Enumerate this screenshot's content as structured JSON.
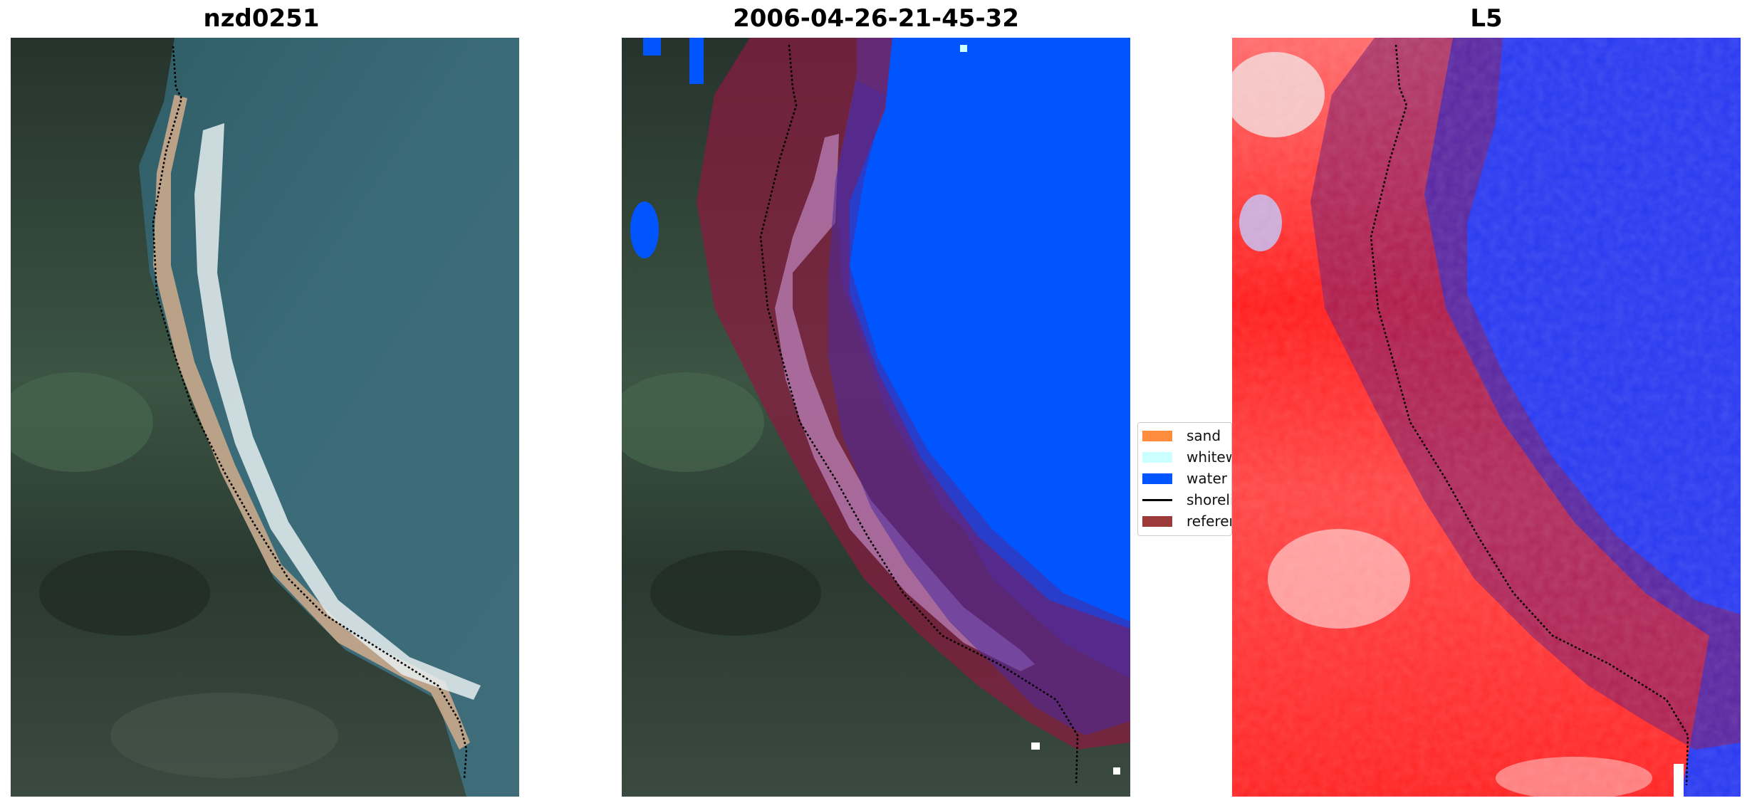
{
  "panels": [
    {
      "title": "nzd0251"
    },
    {
      "title": "2006-04-26-21-45-32"
    },
    {
      "title": "L5"
    }
  ],
  "legend": {
    "items": [
      {
        "label": "sand",
        "color": "#ff8c3c"
      },
      {
        "label": "whitewater",
        "color": "#ccffff"
      },
      {
        "label": "water",
        "color": "#0055ff"
      },
      {
        "label": "shoreline",
        "color": "#000000"
      },
      {
        "label": "reference shoreline buffer",
        "color": "#9c3a3a"
      }
    ]
  },
  "colors": {
    "land_dark": "#2b3a33",
    "land_green": "#3f5a46",
    "sea": "#2f5b68",
    "beach": "#c8a888",
    "surf": "#e8f0f2",
    "buffer": "#8a1a40",
    "ndwi_red": "#ff1010",
    "ndwi_blue": "#2030ff"
  }
}
